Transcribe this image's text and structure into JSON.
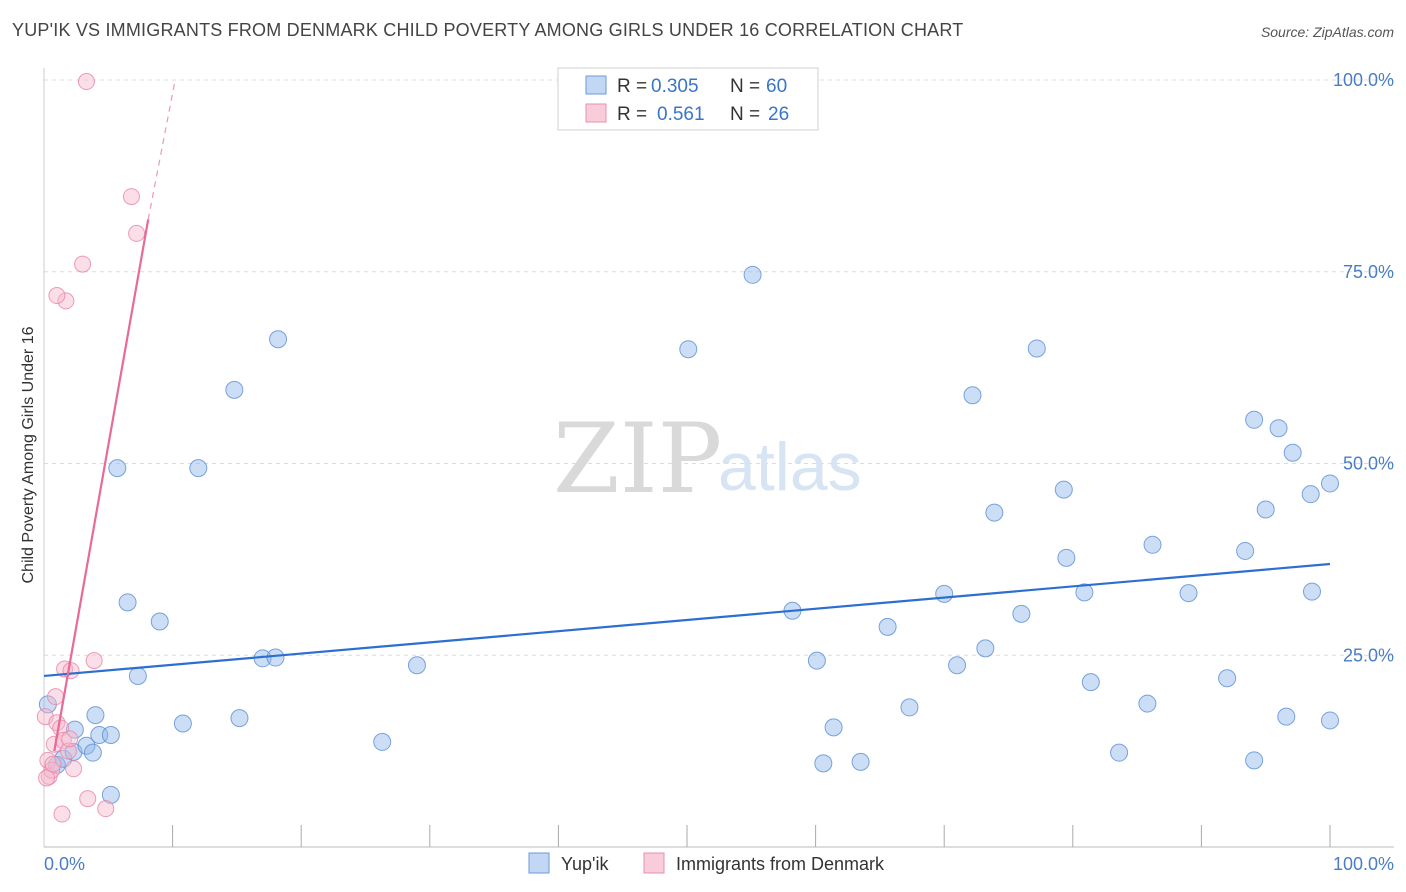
{
  "title": "YUP'IK VS IMMIGRANTS FROM DENMARK CHILD POVERTY AMONG GIRLS UNDER 16 CORRELATION CHART",
  "source": "Source: ZipAtlas.com",
  "watermark": {
    "zip": "ZIP",
    "atlas": "atlas"
  },
  "chart_data": {
    "type": "scatter",
    "ylabel": "Child Poverty Among Girls Under 16",
    "xlim": [
      0,
      100
    ],
    "ylim": [
      0,
      100
    ],
    "x_tick_labels": [
      {
        "value": 0,
        "label": "0.0%"
      },
      {
        "value": 100,
        "label": "100.0%"
      }
    ],
    "y_tick_labels": [
      {
        "value": 100,
        "label": "100.0%"
      },
      {
        "value": 75,
        "label": "75.0%"
      },
      {
        "value": 50,
        "label": "50.0%"
      },
      {
        "value": 25,
        "label": "25.0%"
      }
    ],
    "legend_stats": [
      {
        "r_label": "R =",
        "r_value": "0.305",
        "n_label": "N =",
        "n_value": "60"
      },
      {
        "r_label": "R =",
        "r_value": "0.561",
        "n_label": "N =",
        "n_value": "26"
      }
    ],
    "series": [
      {
        "name": "Yup'ik",
        "color": "#8fb5e8",
        "stroke": "#5b8fd6",
        "line_color": "#2d6fd0",
        "trend": {
          "x": [
            0,
            100
          ],
          "y": [
            22.3,
            36.9
          ]
        },
        "points": [
          [
            0.3,
            18.6
          ],
          [
            1.0,
            10.7
          ],
          [
            1.5,
            11.5
          ],
          [
            2.3,
            12.4
          ],
          [
            2.4,
            15.3
          ],
          [
            3.3,
            13.2
          ],
          [
            3.8,
            12.3
          ],
          [
            4.0,
            17.2
          ],
          [
            4.3,
            14.6
          ],
          [
            5.2,
            14.6
          ],
          [
            5.2,
            6.8
          ],
          [
            5.7,
            49.4
          ],
          [
            6.5,
            31.9
          ],
          [
            7.3,
            22.3
          ],
          [
            9.0,
            29.4
          ],
          [
            10.8,
            16.1
          ],
          [
            12.0,
            49.4
          ],
          [
            14.8,
            59.6
          ],
          [
            15.2,
            16.8
          ],
          [
            17.0,
            24.6
          ],
          [
            18.0,
            24.7
          ],
          [
            18.2,
            66.2
          ],
          [
            26.3,
            13.7
          ],
          [
            29.0,
            23.7
          ],
          [
            50.1,
            64.9
          ],
          [
            55.1,
            74.6
          ],
          [
            58.2,
            30.8
          ],
          [
            60.1,
            24.3
          ],
          [
            60.6,
            10.9
          ],
          [
            61.4,
            15.6
          ],
          [
            63.5,
            11.1
          ],
          [
            65.6,
            28.7
          ],
          [
            67.3,
            18.2
          ],
          [
            70.0,
            33.0
          ],
          [
            71.0,
            23.7
          ],
          [
            72.2,
            58.9
          ],
          [
            73.2,
            25.9
          ],
          [
            73.9,
            43.6
          ],
          [
            76.0,
            30.4
          ],
          [
            77.2,
            65.0
          ],
          [
            79.3,
            46.6
          ],
          [
            79.5,
            37.7
          ],
          [
            80.9,
            33.2
          ],
          [
            81.4,
            21.5
          ],
          [
            83.6,
            12.3
          ],
          [
            86.2,
            39.4
          ],
          [
            85.8,
            18.7
          ],
          [
            89.0,
            33.1
          ],
          [
            92.0,
            22.0
          ],
          [
            93.4,
            38.6
          ],
          [
            94.1,
            55.7
          ],
          [
            94.1,
            11.3
          ],
          [
            95.0,
            44.0
          ],
          [
            96.0,
            54.6
          ],
          [
            96.6,
            17.0
          ],
          [
            97.1,
            51.4
          ],
          [
            98.5,
            46.0
          ],
          [
            98.6,
            33.3
          ],
          [
            100.0,
            16.5
          ],
          [
            100.0,
            47.4
          ]
        ]
      },
      {
        "name": "Immigrants from Denmark",
        "color": "#f5b8cb",
        "stroke": "#e985a8",
        "line_color": "#e86a96",
        "trend": {
          "x": [
            0.8,
            8.1
          ],
          "y": [
            12.5,
            81.8
          ]
        },
        "trend_dashed": {
          "x": [
            8.1,
            10.2
          ],
          "y": [
            81.8,
            100.0
          ]
        },
        "points": [
          [
            0.1,
            17.0
          ],
          [
            0.3,
            11.3
          ],
          [
            0.4,
            9.2
          ],
          [
            0.6,
            10.0
          ],
          [
            0.8,
            13.4
          ],
          [
            0.9,
            19.6
          ],
          [
            1.0,
            16.2
          ],
          [
            1.3,
            15.5
          ],
          [
            1.4,
            4.3
          ],
          [
            1.5,
            13.9
          ],
          [
            1.6,
            23.2
          ],
          [
            1.7,
            71.2
          ],
          [
            1.9,
            12.5
          ],
          [
            1.0,
            71.9
          ],
          [
            2.0,
            14.1
          ],
          [
            2.1,
            23.0
          ],
          [
            2.3,
            10.2
          ],
          [
            3.0,
            76.0
          ],
          [
            3.3,
            99.8
          ],
          [
            3.4,
            6.3
          ],
          [
            3.9,
            24.3
          ],
          [
            4.8,
            5.0
          ],
          [
            6.8,
            84.8
          ],
          [
            7.2,
            80.0
          ],
          [
            0.2,
            9.0
          ],
          [
            0.7,
            10.8
          ]
        ]
      }
    ]
  }
}
